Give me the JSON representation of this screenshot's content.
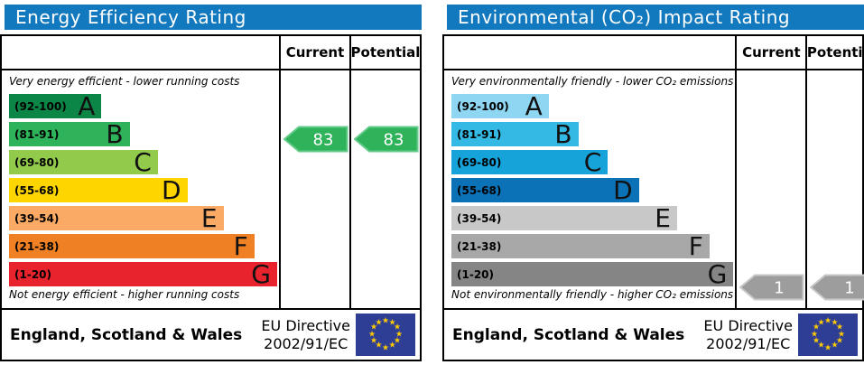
{
  "panels": [
    {
      "title": "Energy Efficiency Rating",
      "columns": {
        "current": "Current",
        "potential": "Potential"
      },
      "top_note": "Very energy efficient - lower running costs",
      "bottom_note": "Not energy efficient - higher running costs",
      "bands": [
        {
          "range": "(92-100)",
          "letter": "A",
          "color": "#0c8647",
          "width_pct": 34.5
        },
        {
          "range": "(81-91)",
          "letter": "B",
          "color": "#2eb35a",
          "width_pct": 45
        },
        {
          "range": "(69-80)",
          "letter": "C",
          "color": "#92ca4c",
          "width_pct": 55.5
        },
        {
          "range": "(55-68)",
          "letter": "D",
          "color": "#ffd500",
          "width_pct": 66.5
        },
        {
          "range": "(39-54)",
          "letter": "E",
          "color": "#fbaa65",
          "width_pct": 80
        },
        {
          "range": "(21-38)",
          "letter": "F",
          "color": "#ef8023",
          "width_pct": 91.5
        },
        {
          "range": "(1-20)",
          "letter": "G",
          "color": "#e9232d",
          "width_pct": 100
        }
      ],
      "current": {
        "value": "83",
        "fill": "#2eb35a",
        "stroke": "#64cb8b",
        "row": 1
      },
      "potential": {
        "value": "83",
        "fill": "#2eb35a",
        "stroke": "#64cb8b",
        "row": 1
      },
      "footer": {
        "region": "England, Scotland & Wales",
        "directive_line1": "EU Directive",
        "directive_line2": "2002/91/EC"
      }
    },
    {
      "title": "Environmental (CO₂) Impact Rating",
      "columns": {
        "current": "Current",
        "potential": "Potential"
      },
      "top_note": "Very environmentally friendly - lower CO₂ emissions",
      "bottom_note": "Not environmentally friendly - higher CO₂ emissions",
      "bands": [
        {
          "range": "(92-100)",
          "letter": "A",
          "color": "#8ed6f1",
          "width_pct": 34.5
        },
        {
          "range": "(81-91)",
          "letter": "B",
          "color": "#34b8e4",
          "width_pct": 45
        },
        {
          "range": "(69-80)",
          "letter": "C",
          "color": "#16a3da",
          "width_pct": 55.5
        },
        {
          "range": "(55-68)",
          "letter": "D",
          "color": "#0b72b8",
          "width_pct": 66.5
        },
        {
          "range": "(39-54)",
          "letter": "E",
          "color": "#c8c8c8",
          "width_pct": 80
        },
        {
          "range": "(21-38)",
          "letter": "F",
          "color": "#a8a8a8",
          "width_pct": 91.5
        },
        {
          "range": "(1-20)",
          "letter": "G",
          "color": "#858585",
          "width_pct": 100
        }
      ],
      "current": {
        "value": "1",
        "fill": "#9d9d9d",
        "stroke": "#c9c9c9",
        "row": 6
      },
      "potential": {
        "value": "1",
        "fill": "#9d9d9d",
        "stroke": "#c9c9c9",
        "row": 6
      },
      "footer": {
        "region": "England, Scotland & Wales",
        "directive_line1": "EU Directive",
        "directive_line2": "2002/91/EC"
      }
    }
  ],
  "chart_data": [
    {
      "type": "bar",
      "title": "Energy Efficiency Rating",
      "categories": [
        "A",
        "B",
        "C",
        "D",
        "E",
        "F",
        "G"
      ],
      "band_ranges": [
        "92-100",
        "81-91",
        "69-80",
        "55-68",
        "39-54",
        "21-38",
        "1-20"
      ],
      "band_widths_pct": [
        34.5,
        45,
        55.5,
        66.5,
        80,
        91.5,
        100
      ],
      "band_colors": [
        "#0c8647",
        "#2eb35a",
        "#92ca4c",
        "#ffd500",
        "#fbaa65",
        "#ef8023",
        "#e9232d"
      ],
      "current": {
        "value": 83,
        "band": "B"
      },
      "potential": {
        "value": 83,
        "band": "B"
      },
      "top_note": "Very energy efficient - lower running costs",
      "bottom_note": "Not energy efficient - higher running costs",
      "region": "England, Scotland & Wales",
      "directive": "EU Directive 2002/91/EC"
    },
    {
      "type": "bar",
      "title": "Environmental (CO₂) Impact Rating",
      "categories": [
        "A",
        "B",
        "C",
        "D",
        "E",
        "F",
        "G"
      ],
      "band_ranges": [
        "92-100",
        "81-91",
        "69-80",
        "55-68",
        "39-54",
        "21-38",
        "1-20"
      ],
      "band_widths_pct": [
        34.5,
        45,
        55.5,
        66.5,
        80,
        91.5,
        100
      ],
      "band_colors": [
        "#8ed6f1",
        "#34b8e4",
        "#16a3da",
        "#0b72b8",
        "#c8c8c8",
        "#a8a8a8",
        "#858585"
      ],
      "current": {
        "value": 1,
        "band": "G"
      },
      "potential": {
        "value": 1,
        "band": "G"
      },
      "top_note": "Very environmentally friendly - lower CO₂ emissions",
      "bottom_note": "Not environmentally friendly - higher CO₂ emissions",
      "region": "England, Scotland & Wales",
      "directive": "EU Directive 2002/91/EC"
    }
  ],
  "accent_colors": {
    "title_bar": "#1279be",
    "eu_flag_blue": "#2e3e95",
    "eu_star_yellow": "#ffcc00"
  }
}
